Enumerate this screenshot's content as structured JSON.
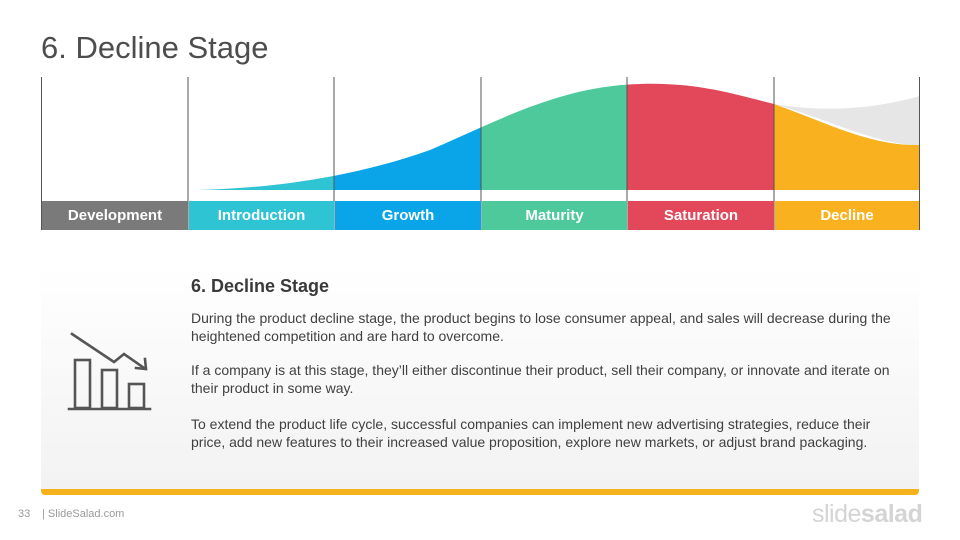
{
  "slide": {
    "title": "6. Decline Stage",
    "page_number": "33",
    "site": "| SlideSalad.com",
    "logo_light": "slide",
    "logo_bold": "salad"
  },
  "stages": [
    {
      "label": "Development",
      "color": "#7a7a7a"
    },
    {
      "label": "Introduction",
      "color": "#2ec4d4"
    },
    {
      "label": "Growth",
      "color": "#0aa5e8"
    },
    {
      "label": "Maturity",
      "color": "#4ec99c"
    },
    {
      "label": "Saturation",
      "color": "#e2475a"
    },
    {
      "label": "Decline",
      "color": "#f9b11f"
    }
  ],
  "detail": {
    "heading": "6. Decline Stage",
    "icon": "declining-bar-chart-icon",
    "paragraphs": [
      "During the product decline stage, the product begins to lose consumer appeal, and sales will decrease during the heightened competition and are hard to overcome.",
      "If a company is at this stage, they’ll either discontinue their product, sell their company, or innovate and iterate on their product in some way.",
      "To extend the product life cycle, successful companies can implement new advertising strategies, reduce their price, add new features to their increased value proposition, explore new markets, or adjust brand packaging."
    ],
    "accent_color": "#f6b21b"
  }
}
